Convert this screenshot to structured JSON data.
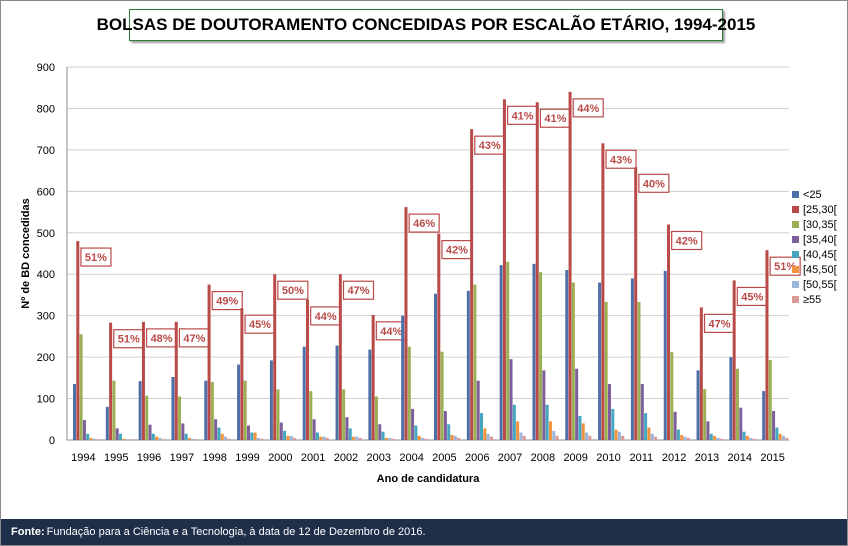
{
  "title": "BOLSAS DE DOUTORAMENTO CONCEDIDAS POR ESCALÃO ETÁRIO, 1994-2015",
  "footer": {
    "label": "Fonte:",
    "text": "Fundação para a Ciência e a Tecnologia, à data de 12 de Dezembro de 2016."
  },
  "colors": [
    "#4f6fa8",
    "#b94a48",
    "#9bb055",
    "#7d5f9c",
    "#44a6bf",
    "#f0923e",
    "#9cb5d8",
    "#d99a98"
  ],
  "chart_data": {
    "type": "bar",
    "title": "BOLSAS DE DOUTORAMENTO CONCEDIDAS POR ESCALÃO ETÁRIO, 1994-2015",
    "xlabel": "Ano de candidatura",
    "ylabel": "Nº de BD concedidas",
    "ylim": [
      0,
      900
    ],
    "yticks": [
      0,
      100,
      200,
      300,
      400,
      500,
      600,
      700,
      800,
      900
    ],
    "grid": true,
    "legend_position": "right",
    "categories": [
      "1994",
      "1995",
      "1996",
      "1997",
      "1998",
      "1999",
      "2000",
      "2001",
      "2002",
      "2003",
      "2004",
      "2005",
      "2006",
      "2007",
      "2008",
      "2009",
      "2010",
      "2011",
      "2012",
      "2013",
      "2014",
      "2015"
    ],
    "series": [
      {
        "name": "<25",
        "values": [
          135,
          80,
          142,
          152,
          143,
          182,
          192,
          225,
          228,
          218,
          300,
          353,
          360,
          422,
          425,
          410,
          380,
          390,
          408,
          168,
          200,
          118
        ]
      },
      {
        "name": "[25,30[",
        "values": [
          480,
          283,
          285,
          285,
          375,
          318,
          400,
          338,
          400,
          302,
          562,
          498,
          750,
          822,
          815,
          840,
          716,
          658,
          520,
          320,
          385,
          458
        ]
      },
      {
        "name": "[30,35[",
        "values": [
          255,
          143,
          107,
          105,
          140,
          143,
          122,
          118,
          122,
          105,
          225,
          213,
          375,
          430,
          405,
          380,
          333,
          333,
          212,
          123,
          172,
          193
        ]
      },
      {
        "name": "[35,40[",
        "values": [
          48,
          28,
          37,
          40,
          50,
          35,
          42,
          50,
          55,
          38,
          75,
          70,
          143,
          195,
          168,
          172,
          135,
          135,
          68,
          45,
          78,
          70
        ]
      },
      {
        "name": "[40,45[",
        "values": [
          15,
          15,
          15,
          15,
          30,
          18,
          22,
          18,
          28,
          20,
          35,
          38,
          65,
          85,
          85,
          58,
          75,
          65,
          25,
          15,
          20,
          30
        ]
      },
      {
        "name": "[45,50[",
        "values": [
          5,
          3,
          8,
          5,
          15,
          18,
          10,
          8,
          8,
          5,
          10,
          12,
          28,
          45,
          45,
          40,
          25,
          30,
          12,
          10,
          10,
          15
        ]
      },
      {
        "name": "[50,55[",
        "values": [
          3,
          2,
          5,
          3,
          8,
          5,
          10,
          8,
          8,
          5,
          5,
          10,
          15,
          18,
          22,
          18,
          20,
          15,
          8,
          5,
          5,
          10
        ]
      },
      {
        "name": "≥55",
        "values": [
          2,
          2,
          2,
          2,
          3,
          3,
          5,
          5,
          5,
          3,
          3,
          5,
          8,
          10,
          10,
          10,
          10,
          8,
          5,
          3,
          3,
          5
        ]
      }
    ],
    "annotations": [
      "51%",
      "51%",
      "48%",
      "47%",
      "49%",
      "45%",
      "50%",
      "44%",
      "47%",
      "44%",
      "46%",
      "42%",
      "43%",
      "41%",
      "41%",
      "44%",
      "43%",
      "40%",
      "42%",
      "47%",
      "45%",
      "51%"
    ]
  }
}
